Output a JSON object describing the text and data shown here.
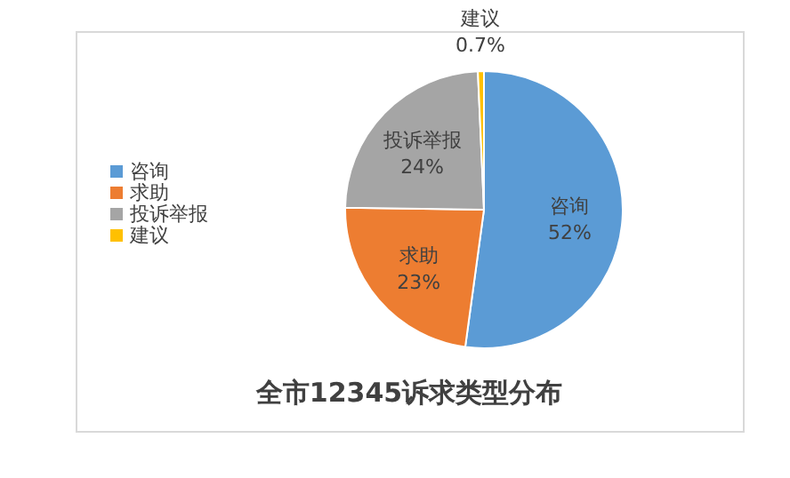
{
  "chart_data": {
    "type": "pie",
    "title": "全市12345诉求类型分布",
    "categories": [
      "咨询",
      "求助",
      "投诉举报",
      "建议"
    ],
    "values": [
      52,
      23,
      24,
      0.7
    ],
    "value_labels": [
      "52%",
      "23%",
      "24%",
      "0.7%"
    ],
    "colors": [
      "#5b9bd5",
      "#ed7d31",
      "#a5a5a5",
      "#ffc000"
    ],
    "legend": "left"
  }
}
